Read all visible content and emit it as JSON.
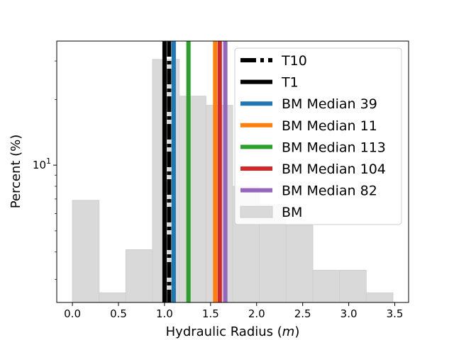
{
  "chart_data": {
    "type": "bar",
    "title": "",
    "xlabel_main": "Hydraulic Radius (",
    "xlabel_italic": "m",
    "xlabel_end": ")",
    "ylabel": "Percent (%)",
    "xlim": [
      -0.17,
      3.65
    ],
    "ylim": [
      2.35,
      37
    ],
    "yscale": "log",
    "x_ticks": [
      0.0,
      0.5,
      1.0,
      1.5,
      2.0,
      2.5,
      3.0,
      3.5
    ],
    "x_tick_labels": [
      "0.0",
      "0.5",
      "1.0",
      "1.5",
      "2.0",
      "2.5",
      "3.0",
      "3.5"
    ],
    "y_tick_base": "10",
    "y_tick_exp": "1",
    "grid": false,
    "legend_position": "top-right",
    "histogram": {
      "name": "BM",
      "color": "#d9d9d9",
      "bin_edges": [
        0.0,
        0.29,
        0.58,
        0.87,
        1.16,
        1.45,
        1.74,
        2.03,
        2.32,
        2.61,
        2.9,
        3.19,
        3.48
      ],
      "values": [
        6.9,
        2.6,
        4.1,
        30.5,
        20.7,
        18.8,
        8.0,
        6.6,
        5.3,
        3.3,
        3.3,
        2.6
      ]
    },
    "lines": [
      {
        "name": "T10",
        "x": 1.05,
        "color": "#000000",
        "style": "dashdot"
      },
      {
        "name": "T1",
        "x": 1.0,
        "color": "#000000",
        "style": "solid"
      },
      {
        "name": "BM Median 39",
        "x": 1.1,
        "color": "#1f77b4",
        "style": "solid"
      },
      {
        "name": "BM Median 11",
        "x": 1.55,
        "color": "#ff7f0e",
        "style": "solid"
      },
      {
        "name": "BM Median 113",
        "x": 1.26,
        "color": "#2ca02c",
        "style": "solid"
      },
      {
        "name": "BM Median 104",
        "x": 1.6,
        "color": "#d62728",
        "style": "solid"
      },
      {
        "name": "BM Median 82",
        "x": 1.66,
        "color": "#9467bd",
        "style": "solid"
      }
    ]
  }
}
